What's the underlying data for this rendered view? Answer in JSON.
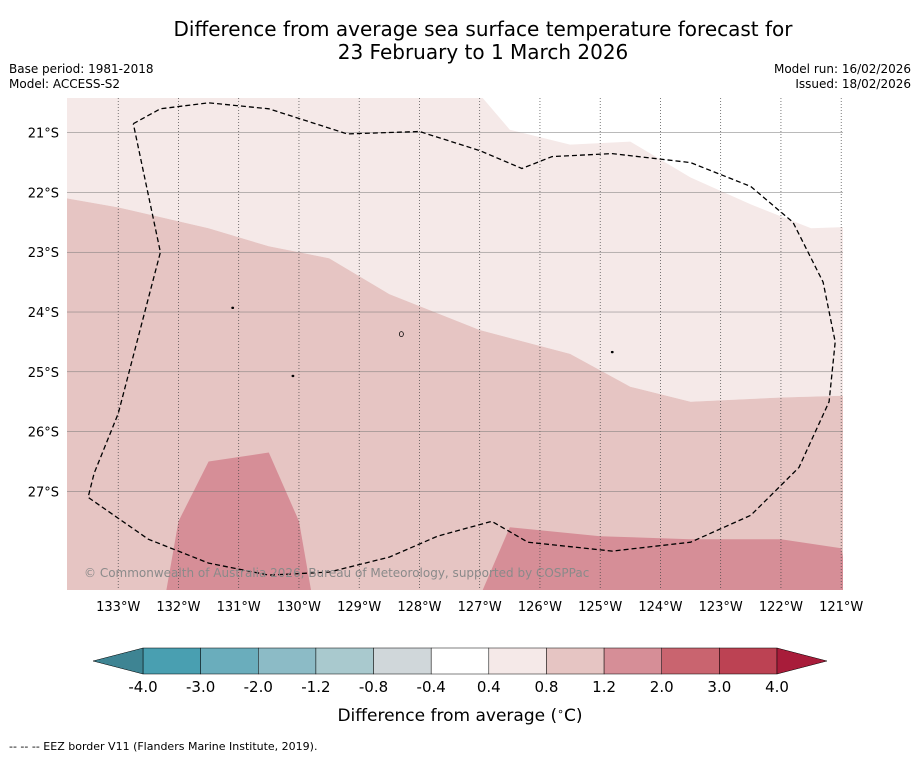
{
  "header": {
    "title_line1": "Difference from average sea surface temperature forecast for",
    "title_line2": "23 February to 1 March 2026",
    "base_period": "Base period: 1981-2018",
    "model": "Model: ACCESS-S2",
    "model_run": "Model run: 16/02/2026",
    "issued": "Issued: 18/02/2026"
  },
  "chart_data": {
    "type": "heatmap",
    "title": "Difference from average sea surface temperature forecast for 23 February to 1 March 2026",
    "x_axis": {
      "range": [
        -133.85,
        -120.97
      ],
      "ticks": [
        -133,
        -132,
        -131,
        -130,
        -129,
        -128,
        -127,
        -126,
        -125,
        -124,
        -123,
        -122,
        -121
      ],
      "tick_labels": [
        "133°W",
        "132°W",
        "131°W",
        "130°W",
        "129°W",
        "128°W",
        "127°W",
        "126°W",
        "125°W",
        "124°W",
        "123°W",
        "122°W",
        "121°W"
      ]
    },
    "y_axis": {
      "range": [
        -28.65,
        -20.42
      ],
      "ticks": [
        -21,
        -22,
        -23,
        -24,
        -25,
        -26,
        -27
      ],
      "tick_labels": [
        "21°S",
        "22°S",
        "23°S",
        "24°S",
        "25°S",
        "26°S",
        "27°S"
      ]
    },
    "fill_regions": [
      {
        "range": "0.4 to 0.8",
        "color": "#f5e9e8",
        "polygon": [
          [
            -133.85,
            -20.42
          ],
          [
            -126.95,
            -20.42
          ],
          [
            -126.5,
            -20.95
          ],
          [
            -125.5,
            -21.2
          ],
          [
            -124.5,
            -21.15
          ],
          [
            -123.5,
            -21.75
          ],
          [
            -122.5,
            -22.2
          ],
          [
            -121.5,
            -22.6
          ],
          [
            -120.97,
            -22.58
          ],
          [
            -120.97,
            -25.4
          ],
          [
            -122,
            -25.43
          ],
          [
            -123.5,
            -25.5
          ],
          [
            -124.5,
            -25.25
          ],
          [
            -125.5,
            -24.7
          ],
          [
            -127,
            -24.3
          ],
          [
            -128.5,
            -23.7
          ],
          [
            -129.5,
            -23.1
          ],
          [
            -130.5,
            -22.9
          ],
          [
            -131.5,
            -22.6
          ],
          [
            -133,
            -22.25
          ],
          [
            -133.85,
            -22.1
          ]
        ]
      },
      {
        "range": "0.8 to 1.2",
        "color": "#e6c5c3",
        "polygon": [
          [
            -133.85,
            -22.1
          ],
          [
            -133,
            -22.25
          ],
          [
            -131.5,
            -22.6
          ],
          [
            -130.5,
            -22.9
          ],
          [
            -129.5,
            -23.1
          ],
          [
            -128.5,
            -23.7
          ],
          [
            -127,
            -24.3
          ],
          [
            -125.5,
            -24.7
          ],
          [
            -124.5,
            -25.25
          ],
          [
            -123.5,
            -25.5
          ],
          [
            -122,
            -25.43
          ],
          [
            -120.97,
            -25.4
          ],
          [
            -120.97,
            -28.65
          ],
          [
            -133.85,
            -28.65
          ]
        ]
      },
      {
        "range": "1.2 to 2.0",
        "color": "#d68e97",
        "polygon": [
          [
            -132.2,
            -28.65
          ],
          [
            -132,
            -27.5
          ],
          [
            -131.5,
            -26.5
          ],
          [
            -130.5,
            -26.35
          ],
          [
            -130,
            -27.5
          ],
          [
            -129.8,
            -28.65
          ]
        ]
      },
      {
        "range": "1.2 to 2.0",
        "color": "#d68e97",
        "polygon": [
          [
            -126.95,
            -28.65
          ],
          [
            -126.5,
            -27.6
          ],
          [
            -125,
            -27.75
          ],
          [
            -123.5,
            -27.8
          ],
          [
            -122,
            -27.8
          ],
          [
            -121,
            -27.95
          ],
          [
            -120.97,
            -28.1
          ],
          [
            -120.97,
            -28.65
          ]
        ]
      }
    ],
    "eez_border": [
      [
        -132.75,
        -20.85
      ],
      [
        -132.3,
        -20.6
      ],
      [
        -131.5,
        -20.5
      ],
      [
        -130.5,
        -20.6
      ],
      [
        -129.2,
        -21.02
      ],
      [
        -128,
        -20.98
      ],
      [
        -127,
        -21.3
      ],
      [
        -126.3,
        -21.6
      ],
      [
        -125.8,
        -21.4
      ],
      [
        -124.8,
        -21.35
      ],
      [
        -123.5,
        -21.5
      ],
      [
        -122.5,
        -21.9
      ],
      [
        -121.8,
        -22.5
      ],
      [
        -121.3,
        -23.5
      ],
      [
        -121.1,
        -24.5
      ],
      [
        -121.2,
        -25.5
      ],
      [
        -121.7,
        -26.6
      ],
      [
        -122.5,
        -27.4
      ],
      [
        -123.5,
        -27.85
      ],
      [
        -124.8,
        -28.0
      ],
      [
        -126.2,
        -27.85
      ],
      [
        -126.8,
        -27.5
      ],
      [
        -127.7,
        -27.75
      ],
      [
        -128.5,
        -28.1
      ],
      [
        -129.5,
        -28.35
      ],
      [
        -130.5,
        -28.4
      ],
      [
        -131.5,
        -28.2
      ],
      [
        -132.5,
        -27.8
      ],
      [
        -133.5,
        -27.1
      ],
      [
        -133.4,
        -26.7
      ],
      [
        -133,
        -25.7
      ],
      [
        -132.3,
        -23
      ],
      [
        -132.75,
        -20.85
      ]
    ],
    "islands": [
      [
        -131.1,
        -23.93
      ],
      [
        -128.3,
        -24.37
      ],
      [
        -124.8,
        -24.67
      ],
      [
        -130.1,
        -25.07
      ]
    ],
    "watermark": "© Commonwealth of Australia 2026, Bureau of Meteorology, supported by COSPPac",
    "colorbar": {
      "label": "Difference from average (°C)",
      "label_base": "Difference from average (",
      "label_unit": "C)",
      "label_deg": "∘",
      "tick_labels": [
        "-4.0",
        "-3.0",
        "-2.0",
        "-1.2",
        "-0.8",
        "-0.4",
        "0.4",
        "0.8",
        "1.2",
        "2.0",
        "3.0",
        "4.0"
      ],
      "colors": [
        "#499fb1",
        "#6aadbc",
        "#8cbbc6",
        "#a9c9ce",
        "#d0d7da",
        "#ffffff",
        "#f5e9e8",
        "#e6c5c3",
        "#d68e97",
        "#c9646f",
        "#bc4253"
      ],
      "under_color": "#3e8493",
      "over_color": "#a81c3a"
    }
  },
  "footer": {
    "eez_note": "--  --  -- EEZ border V11 (Flanders Marine Institute, 2019)."
  }
}
